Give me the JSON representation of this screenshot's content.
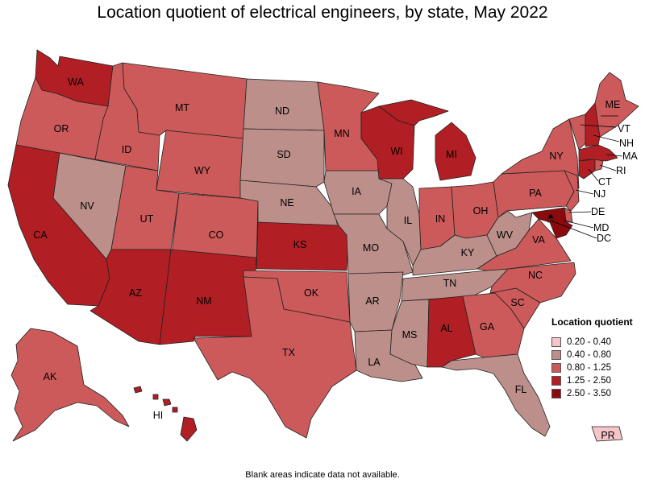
{
  "title": "Location quotient of electrical engineers, by state, May 2022",
  "footnote": "Blank areas indicate data not available.",
  "legend": {
    "title": "Location quotient",
    "items": [
      {
        "label": "0.20 - 0.40",
        "color": "#f7c5c8"
      },
      {
        "label": "0.40 - 0.80",
        "color": "#bc8f8a"
      },
      {
        "label": "0.80 - 1.25",
        "color": "#cd5a5a"
      },
      {
        "label": "1.25 - 2.50",
        "color": "#b11f24"
      },
      {
        "label": "2.50 - 3.50",
        "color": "#8b0a0e"
      }
    ]
  },
  "states": [
    {
      "abbr": "WA",
      "bin": 3
    },
    {
      "abbr": "OR",
      "bin": 2
    },
    {
      "abbr": "CA",
      "bin": 3
    },
    {
      "abbr": "NV",
      "bin": 1
    },
    {
      "abbr": "ID",
      "bin": 2
    },
    {
      "abbr": "MT",
      "bin": 2
    },
    {
      "abbr": "WY",
      "bin": 2
    },
    {
      "abbr": "UT",
      "bin": 2
    },
    {
      "abbr": "AZ",
      "bin": 3
    },
    {
      "abbr": "CO",
      "bin": 2
    },
    {
      "abbr": "NM",
      "bin": 3
    },
    {
      "abbr": "ND",
      "bin": 1
    },
    {
      "abbr": "SD",
      "bin": 1
    },
    {
      "abbr": "NE",
      "bin": 1
    },
    {
      "abbr": "KS",
      "bin": 3
    },
    {
      "abbr": "OK",
      "bin": 2
    },
    {
      "abbr": "TX",
      "bin": 2
    },
    {
      "abbr": "MN",
      "bin": 2
    },
    {
      "abbr": "IA",
      "bin": 1
    },
    {
      "abbr": "MO",
      "bin": 1
    },
    {
      "abbr": "AR",
      "bin": 1
    },
    {
      "abbr": "LA",
      "bin": 1
    },
    {
      "abbr": "WI",
      "bin": 3
    },
    {
      "abbr": "IL",
      "bin": 1
    },
    {
      "abbr": "MI",
      "bin": 3
    },
    {
      "abbr": "IN",
      "bin": 2
    },
    {
      "abbr": "OH",
      "bin": 2
    },
    {
      "abbr": "KY",
      "bin": 1
    },
    {
      "abbr": "TN",
      "bin": 1
    },
    {
      "abbr": "MS",
      "bin": 1
    },
    {
      "abbr": "AL",
      "bin": 3
    },
    {
      "abbr": "GA",
      "bin": 2
    },
    {
      "abbr": "FL",
      "bin": 1
    },
    {
      "abbr": "SC",
      "bin": 2
    },
    {
      "abbr": "NC",
      "bin": 2
    },
    {
      "abbr": "VA",
      "bin": 2
    },
    {
      "abbr": "WV",
      "bin": 1
    },
    {
      "abbr": "PA",
      "bin": 2
    },
    {
      "abbr": "NY",
      "bin": 2
    },
    {
      "abbr": "ME",
      "bin": 2
    },
    {
      "abbr": "VT",
      "bin": 2
    },
    {
      "abbr": "NH",
      "bin": 3
    },
    {
      "abbr": "MA",
      "bin": 3
    },
    {
      "abbr": "RI",
      "bin": 2
    },
    {
      "abbr": "CT",
      "bin": 3
    },
    {
      "abbr": "NJ",
      "bin": 2
    },
    {
      "abbr": "DE",
      "bin": 2
    },
    {
      "abbr": "MD",
      "bin": 4
    },
    {
      "abbr": "DC",
      "bin": 4
    },
    {
      "abbr": "AK",
      "bin": 2
    },
    {
      "abbr": "HI",
      "bin": 3
    },
    {
      "abbr": "PR",
      "bin": 0
    }
  ]
}
